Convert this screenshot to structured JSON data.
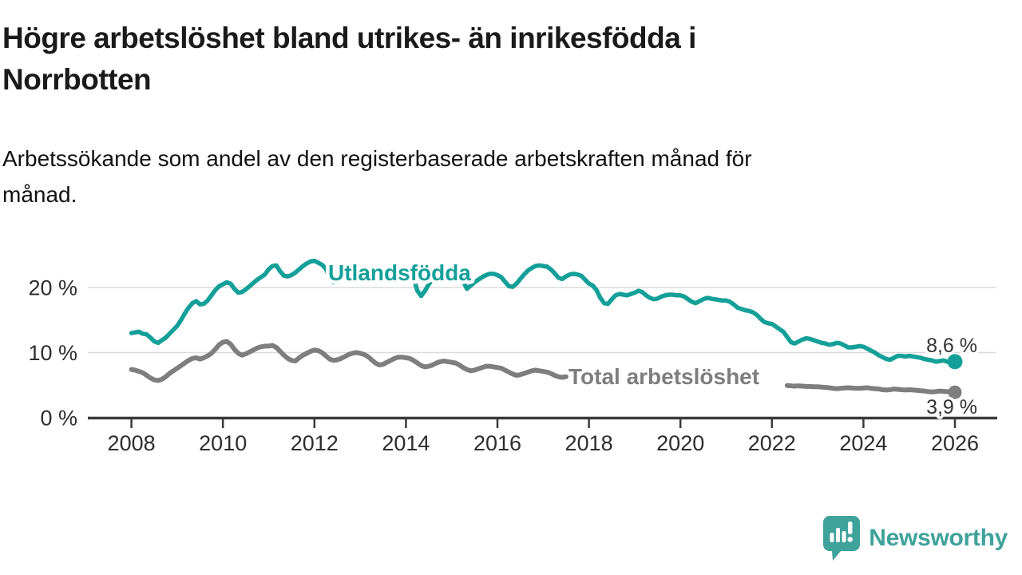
{
  "header": {
    "title_lines": [
      "Högre arbetslöshet bland utrikes- än inrikesfödda i",
      "Norrbotten"
    ],
    "subtitle_lines": [
      "Arbetssökande som andel av den registerbaserade arbetskraften månad för",
      "månad."
    ]
  },
  "footer": {
    "brand": "Newsworthy",
    "logo_icon": "speech-bubble-bar-chart-icon"
  },
  "colors": {
    "accent_teal": "#14a098",
    "series_gray": "#7e7e7e",
    "axis": "#3b3b3b",
    "grid": "#dbdbdb",
    "text_dark": "#2d2d2d",
    "brand_teal": "#3fa29b"
  },
  "chart_data": {
    "type": "line",
    "title": "Högre arbetslöshet bland utrikes- än inrikesfödda i Norrbotten",
    "subtitle": "Arbetssökande som andel av den registerbaserade arbetskraften månad för månad.",
    "x_unit": "month",
    "x_start_year": 2008,
    "x_end_year": 2026,
    "x_ticks": [
      2008,
      2010,
      2012,
      2014,
      2016,
      2018,
      2020,
      2022,
      2024,
      2026
    ],
    "x_tick_labels": [
      "2008",
      "2010",
      "2012",
      "2014",
      "2016",
      "2018",
      "2020",
      "2022",
      "2024",
      "2026"
    ],
    "y_grid": [
      {
        "value": 0,
        "label": "0 %"
      },
      {
        "value": 10,
        "label": "10 %"
      },
      {
        "value": 20,
        "label": "20 %"
      }
    ],
    "ylim": [
      0,
      25.5
    ],
    "grid": "horizontal",
    "legend_position": "inline-labels-on-lines",
    "series": [
      {
        "name": "Utlandsfödda",
        "color": "#14a098",
        "end_label": "8,6 %",
        "end_value": 8.6,
        "values": [
          13.0,
          13.1,
          13.2,
          12.9,
          12.8,
          12.3,
          11.7,
          11.5,
          11.9,
          12.3,
          12.9,
          13.5,
          14.1,
          15.0,
          16.0,
          16.9,
          17.6,
          17.9,
          17.4,
          17.5,
          18.0,
          18.8,
          19.6,
          20.2,
          20.5,
          20.8,
          20.6,
          19.8,
          19.2,
          19.3,
          19.7,
          20.2,
          20.7,
          21.2,
          21.6,
          22.0,
          22.8,
          23.3,
          23.4,
          22.5,
          21.8,
          21.7,
          21.9,
          22.3,
          22.8,
          23.3,
          23.7,
          24.0,
          24.1,
          23.8,
          23.5,
          22.9,
          21.6,
          20.8,
          21.5,
          22.0,
          22.4,
          22.7,
          22.9,
          23.0,
          23.0,
          22.8,
          22.5,
          22.0,
          21.5,
          21.3,
          21.5,
          21.8,
          22.2,
          22.5,
          22.7,
          22.8,
          22.8,
          22.5,
          21.5,
          19.5,
          18.7,
          19.5,
          20.5,
          21.2,
          21.6,
          21.9,
          22.1,
          22.2,
          22.2,
          22.0,
          21.6,
          21.0,
          19.8,
          20.3,
          20.8,
          21.2,
          21.6,
          21.9,
          22.1,
          22.1,
          21.9,
          21.6,
          20.9,
          20.2,
          20.1,
          20.6,
          21.3,
          22.0,
          22.6,
          23.0,
          23.3,
          23.4,
          23.3,
          23.2,
          22.8,
          22.2,
          21.5,
          21.3,
          21.7,
          22.0,
          22.1,
          22.0,
          21.8,
          21.2,
          20.6,
          20.3,
          19.6,
          18.4,
          17.6,
          17.5,
          18.2,
          18.8,
          19.0,
          18.9,
          18.8,
          19.0,
          19.2,
          19.5,
          19.3,
          18.8,
          18.4,
          18.2,
          18.3,
          18.6,
          18.8,
          18.9,
          18.9,
          18.8,
          18.8,
          18.6,
          18.2,
          17.8,
          17.6,
          17.9,
          18.2,
          18.4,
          18.3,
          18.2,
          18.1,
          18.0,
          18.0,
          17.8,
          17.4,
          16.9,
          16.7,
          16.5,
          16.4,
          16.2,
          15.8,
          15.2,
          14.7,
          14.5,
          14.4,
          14.0,
          13.6,
          13.2,
          12.4,
          11.6,
          11.4,
          11.7,
          12.0,
          12.2,
          12.1,
          11.9,
          11.7,
          11.5,
          11.4,
          11.2,
          11.3,
          11.5,
          11.4,
          11.1,
          10.8,
          10.8,
          10.9,
          11.0,
          10.9,
          10.6,
          10.3,
          10.0,
          9.6,
          9.3,
          9.0,
          8.9,
          9.2,
          9.5,
          9.5,
          9.4,
          9.5,
          9.4,
          9.3,
          9.2,
          9.0,
          8.9,
          8.8,
          8.6,
          8.7,
          8.8,
          8.6,
          8.5,
          8.6
        ]
      },
      {
        "name": "Total arbetslöshet",
        "color": "#7e7e7e",
        "end_label": "3,9 %",
        "end_value": 3.9,
        "values": [
          7.4,
          7.3,
          7.1,
          6.9,
          6.5,
          6.1,
          5.8,
          5.7,
          5.9,
          6.3,
          6.8,
          7.2,
          7.6,
          8.0,
          8.4,
          8.8,
          9.1,
          9.2,
          9.0,
          9.2,
          9.5,
          9.9,
          10.5,
          11.2,
          11.6,
          11.7,
          11.3,
          10.5,
          9.9,
          9.6,
          9.8,
          10.1,
          10.4,
          10.7,
          10.9,
          11.0,
          11.0,
          11.1,
          10.8,
          10.2,
          9.6,
          9.1,
          8.8,
          8.7,
          9.2,
          9.6,
          9.9,
          10.2,
          10.4,
          10.3,
          10.0,
          9.5,
          9.0,
          8.8,
          8.9,
          9.1,
          9.4,
          9.7,
          9.9,
          10.0,
          9.9,
          9.7,
          9.4,
          8.9,
          8.4,
          8.1,
          8.2,
          8.5,
          8.8,
          9.1,
          9.3,
          9.3,
          9.2,
          9.1,
          8.8,
          8.4,
          8.0,
          7.8,
          7.9,
          8.1,
          8.4,
          8.6,
          8.7,
          8.6,
          8.5,
          8.4,
          8.1,
          7.7,
          7.4,
          7.2,
          7.3,
          7.5,
          7.7,
          7.9,
          7.9,
          7.8,
          7.7,
          7.6,
          7.3,
          7.0,
          6.7,
          6.5,
          6.6,
          6.8,
          7.0,
          7.2,
          7.3,
          7.2,
          7.1,
          7.0,
          6.8,
          6.5,
          6.3,
          6.2,
          6.3,
          null,
          null,
          null,
          null,
          null,
          null,
          null,
          null,
          null,
          null,
          null,
          null,
          null,
          null,
          null,
          null,
          null,
          null,
          null,
          null,
          null,
          null,
          null,
          null,
          null,
          null,
          null,
          null,
          null,
          null,
          null,
          null,
          null,
          null,
          null,
          null,
          null,
          null,
          null,
          null,
          null,
          null,
          null,
          null,
          null,
          null,
          null,
          null,
          null,
          null,
          null,
          null,
          null,
          null,
          null,
          null,
          null,
          4.95,
          4.9,
          4.85,
          4.9,
          4.85,
          4.8,
          4.8,
          4.75,
          4.75,
          4.7,
          4.65,
          4.6,
          4.5,
          4.45,
          4.5,
          4.55,
          4.6,
          4.55,
          4.5,
          4.5,
          4.55,
          4.6,
          4.5,
          4.45,
          4.4,
          4.3,
          4.25,
          4.3,
          4.4,
          4.35,
          4.3,
          4.25,
          4.3,
          4.25,
          4.2,
          4.15,
          4.1,
          4.0,
          3.95,
          4.0,
          4.1,
          4.05,
          4.0,
          3.95,
          3.9
        ]
      }
    ]
  }
}
